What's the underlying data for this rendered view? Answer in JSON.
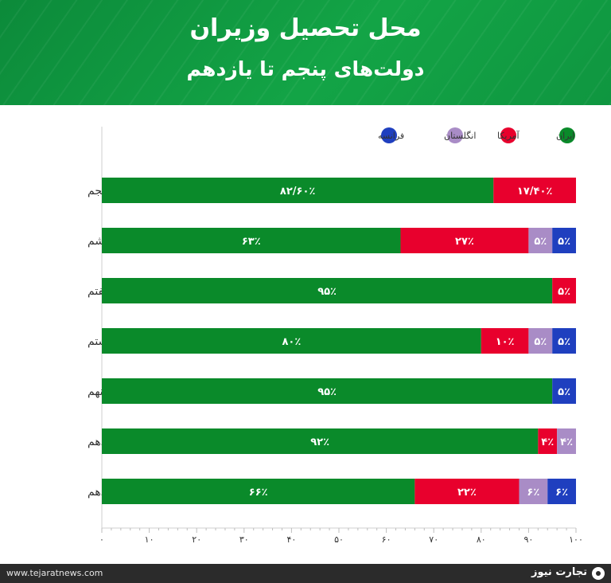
{
  "header": {
    "title": "محل تحصیل وزیران",
    "subtitle": "دولت‌های پنجم تا یازدهم"
  },
  "footer": {
    "url": "www.tejaratnews.com",
    "brand": "تجارت نیوز",
    "logo_icon": "tejarat-news-logo-icon"
  },
  "colors": {
    "header_green": "#13a446",
    "iran": "#0a8a2a",
    "usa": "#e8002d",
    "england": "#a98cc6",
    "france": "#1f3fbf"
  },
  "chart_data": {
    "type": "bar",
    "orientation": "horizontal",
    "stacked": true,
    "categories": [
      "دولت پنجم",
      "دولت ششم",
      "دولت هفتم",
      "دولت هشتم",
      "دولت نهم",
      "دولت دهم",
      "دولت یازدهم"
    ],
    "series": [
      {
        "name": "ایران",
        "color": "#0a8a2a",
        "values": [
          82.6,
          63,
          95,
          80,
          95,
          92,
          66
        ],
        "labels": [
          "۸۲/۶۰٪",
          "۶۳٪",
          "۹۵٪",
          "۸۰٪",
          "۹۵٪",
          "۹۲٪",
          "۶۶٪"
        ]
      },
      {
        "name": "آمریکا",
        "color": "#e8002d",
        "values": [
          17.4,
          27,
          5,
          10,
          0,
          4,
          22
        ],
        "labels": [
          "۱۷/۴۰٪",
          "۲۷٪",
          "۵٪",
          "۱۰٪",
          "",
          "۴٪",
          "۲۲٪"
        ]
      },
      {
        "name": "انگلستان",
        "color": "#a98cc6",
        "values": [
          0,
          5,
          0,
          5,
          0,
          4,
          6
        ],
        "labels": [
          "",
          "۵٪",
          "",
          "۵٪",
          "",
          "۴٪",
          "۶٪"
        ]
      },
      {
        "name": "فرانسه",
        "color": "#1f3fbf",
        "values": [
          0,
          5,
          0,
          5,
          5,
          0,
          6
        ],
        "labels": [
          "",
          "۵٪",
          "",
          "۵٪",
          "۵٪",
          "",
          "۶٪"
        ]
      }
    ],
    "xlim": [
      0,
      100
    ],
    "xticks": [
      0,
      10,
      20,
      30,
      40,
      50,
      60,
      70,
      80,
      90,
      100
    ],
    "xtick_labels": [
      "۰",
      "۱۰",
      "۲۰",
      "۳۰",
      "۴۰",
      "۵۰",
      "۶۰",
      "۷۰",
      "۸۰",
      "۹۰",
      "۱۰۰"
    ],
    "legend_position": "top-right",
    "grid": false
  }
}
